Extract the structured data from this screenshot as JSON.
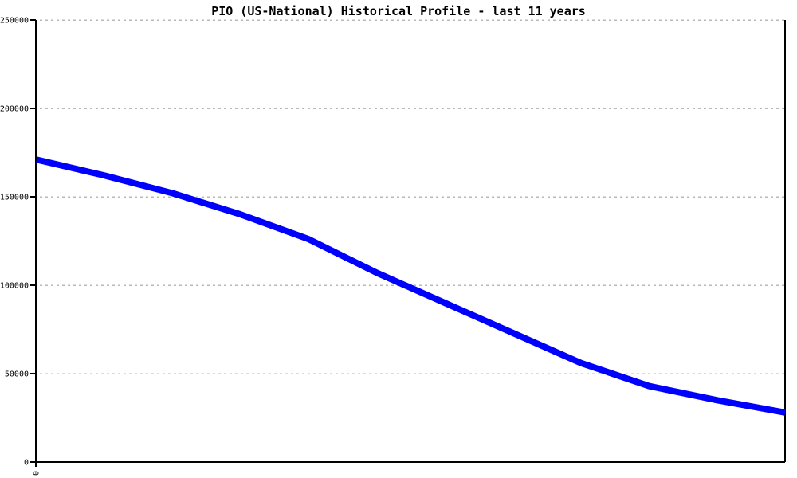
{
  "page": {
    "background": "#ffffff"
  },
  "chart_data": {
    "type": "line",
    "title": "PIO (US-National) Historical Profile - last 11 years",
    "x": [
      0,
      1,
      2,
      3,
      4,
      5,
      6,
      7,
      8,
      9,
      10,
      11
    ],
    "values": [
      171000,
      162000,
      152000,
      140000,
      126000,
      107000,
      90000,
      73000,
      56000,
      43000,
      35000,
      28000
    ],
    "xlabel": "",
    "ylabel": "",
    "ylim": [
      0,
      250000
    ],
    "y_ticks": [
      0,
      50000,
      100000,
      150000,
      200000,
      250000
    ],
    "y_tick_labels": [
      "0",
      "50000",
      "100000",
      "150000",
      "200000",
      "250000"
    ],
    "x_tick_labels": [
      "0"
    ],
    "x_tick_labels_rotated": true,
    "grid": "horizontal-dashed",
    "legend": "none",
    "line_width": 8,
    "colors": {
      "line": "#0000ff",
      "grid": "#b8b8b8",
      "axis": "#000000",
      "text": "#000000",
      "background": "#ffffff"
    }
  }
}
